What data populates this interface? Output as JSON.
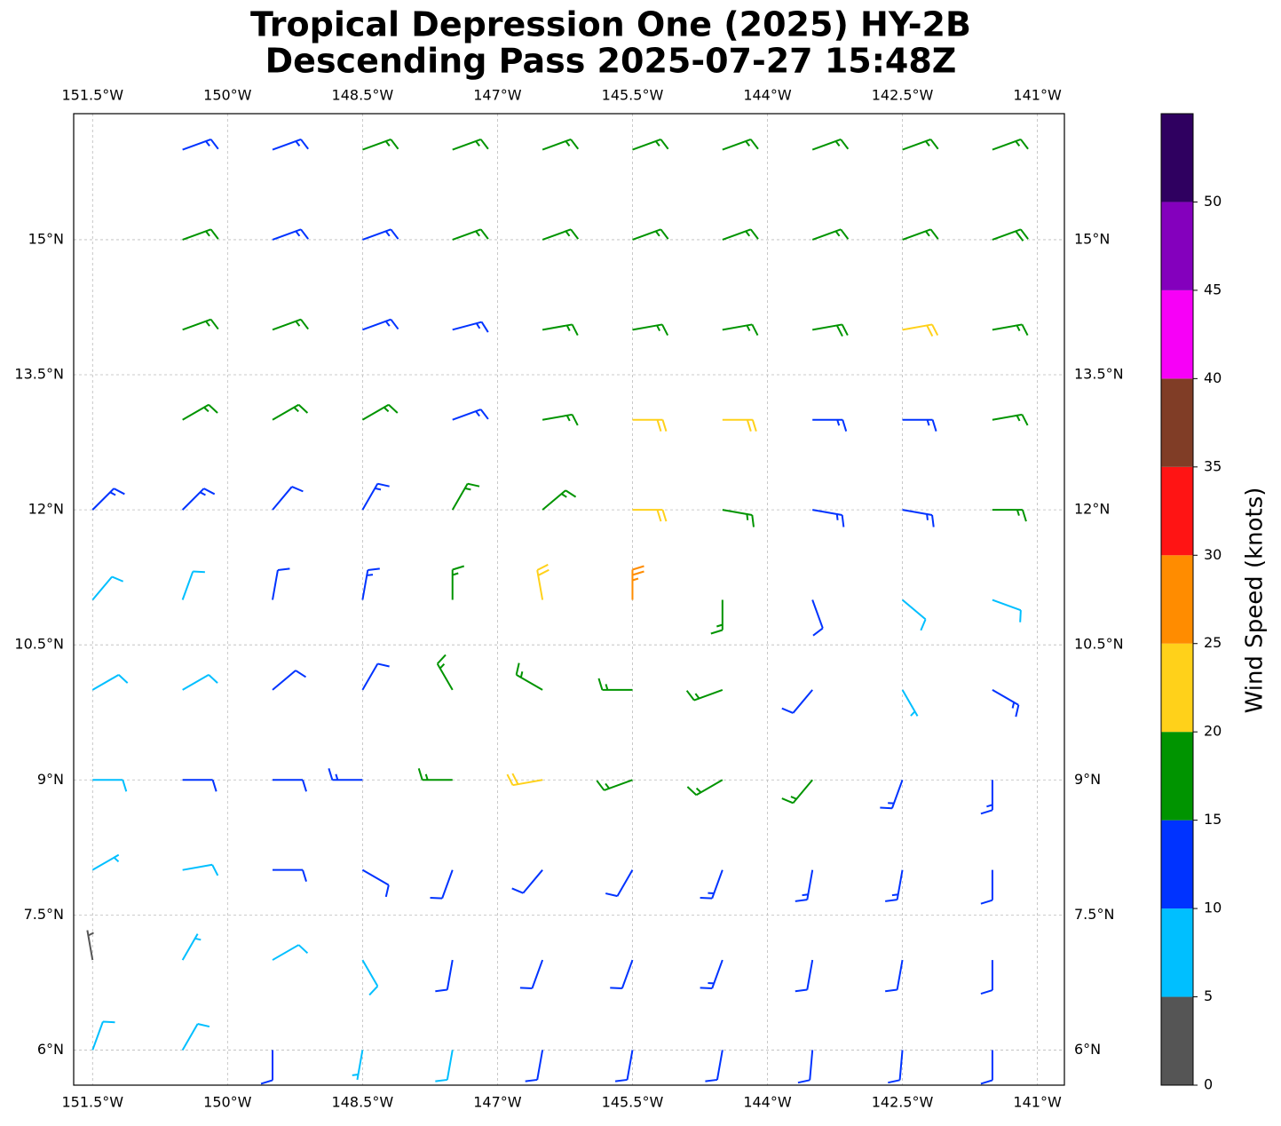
{
  "chart_data": {
    "type": "barbs",
    "title": "Tropical Depression One (2025) HY-2B",
    "subtitle": "Descending Pass 2025-07-27 15:48Z",
    "xlim": [
      -151.71,
      -140.7
    ],
    "ylim": [
      5.61,
      16.4
    ],
    "xticks": [
      {
        "value": -151.5,
        "label": "151.5°W"
      },
      {
        "value": -150,
        "label": "150°W"
      },
      {
        "value": -148.5,
        "label": "148.5°W"
      },
      {
        "value": -147,
        "label": "147°W"
      },
      {
        "value": -145.5,
        "label": "145.5°W"
      },
      {
        "value": -144,
        "label": "144°W"
      },
      {
        "value": -142.5,
        "label": "142.5°W"
      },
      {
        "value": -141,
        "label": "141°W"
      }
    ],
    "yticks": [
      {
        "value": 6,
        "label": "6°N"
      },
      {
        "value": 7.5,
        "label": "7.5°N"
      },
      {
        "value": 9,
        "label": "9°N"
      },
      {
        "value": 10.5,
        "label": "10.5°N"
      },
      {
        "value": 12,
        "label": "12°N"
      },
      {
        "value": 13.5,
        "label": "13.5°N"
      },
      {
        "value": 15,
        "label": "15°N"
      }
    ],
    "grid": true,
    "lon": [
      -151.5,
      -150.5,
      -149.5,
      -148.5,
      -147.5,
      -146.5,
      -145.5,
      -144.5,
      -143.5,
      -142.5,
      -141.5
    ],
    "lat": [
      16,
      15,
      14,
      13,
      12,
      11,
      10,
      9,
      8,
      7,
      6
    ],
    "speed": [
      [
        null,
        13,
        13,
        17,
        17,
        17,
        17,
        16,
        17,
        17,
        17
      ],
      [
        null,
        17,
        14,
        14,
        17,
        17,
        17,
        17,
        17,
        17,
        18
      ],
      [
        null,
        17,
        17,
        14,
        13,
        17,
        17,
        17,
        18,
        21,
        17
      ],
      [
        null,
        17,
        17,
        16,
        14,
        16,
        22,
        21,
        13,
        13,
        17
      ],
      [
        13,
        13,
        12,
        13,
        17,
        17,
        22,
        17,
        13,
        13,
        17
      ],
      [
        8,
        8,
        12,
        13,
        17,
        22,
        25,
        15,
        12,
        8,
        8
      ],
      [
        8,
        8,
        10,
        12,
        16,
        17,
        17,
        17,
        12,
        5,
        13
      ],
      [
        8,
        10,
        12,
        14,
        16,
        20,
        16,
        17,
        16,
        13,
        13
      ],
      [
        5,
        8,
        12,
        12,
        12,
        12,
        12,
        13,
        13,
        13,
        12
      ],
      [
        3,
        7,
        8,
        9,
        12,
        12,
        12,
        14,
        12,
        12,
        12
      ],
      [
        8,
        8,
        12,
        7,
        8,
        12,
        12,
        12,
        12,
        12,
        12
      ]
    ],
    "direction": [
      [
        null,
        70,
        70,
        70,
        70,
        70,
        70,
        70,
        70,
        70,
        70
      ],
      [
        null,
        70,
        70,
        70,
        70,
        70,
        70,
        70,
        70,
        70,
        70
      ],
      [
        null,
        70,
        70,
        70,
        75,
        80,
        80,
        80,
        80,
        80,
        80
      ],
      [
        null,
        60,
        60,
        60,
        70,
        80,
        90,
        90,
        90,
        90,
        80
      ],
      [
        45,
        45,
        40,
        30,
        30,
        50,
        90,
        100,
        100,
        100,
        90
      ],
      [
        40,
        20,
        10,
        10,
        0,
        350,
        0,
        180,
        160,
        130,
        110
      ],
      [
        60,
        60,
        50,
        30,
        330,
        300,
        270,
        250,
        220,
        150,
        120
      ],
      [
        90,
        90,
        90,
        270,
        270,
        260,
        250,
        240,
        220,
        200,
        180
      ],
      [
        60,
        80,
        90,
        120,
        200,
        220,
        210,
        200,
        190,
        190,
        180
      ],
      [
        350,
        30,
        60,
        150,
        190,
        200,
        200,
        200,
        190,
        190,
        180
      ],
      [
        20,
        30,
        180,
        190,
        190,
        190,
        190,
        190,
        185,
        185,
        180
      ]
    ],
    "colorbar": {
      "label": "Wind Speed (knots)",
      "lim": [
        0,
        55
      ],
      "bounds": [
        0,
        5,
        10,
        15,
        20,
        25,
        30,
        35,
        40,
        45,
        50,
        55
      ],
      "colors": [
        "#555555",
        "#00bfff",
        "#0033ff",
        "#009400",
        "#ffd11a",
        "#ff8c00",
        "#ff1414",
        "#803d26",
        "#f700f7",
        "#8400bd",
        "#2f0060"
      ],
      "ticks": [
        0,
        5,
        10,
        15,
        20,
        25,
        30,
        35,
        40,
        45,
        50
      ]
    }
  }
}
